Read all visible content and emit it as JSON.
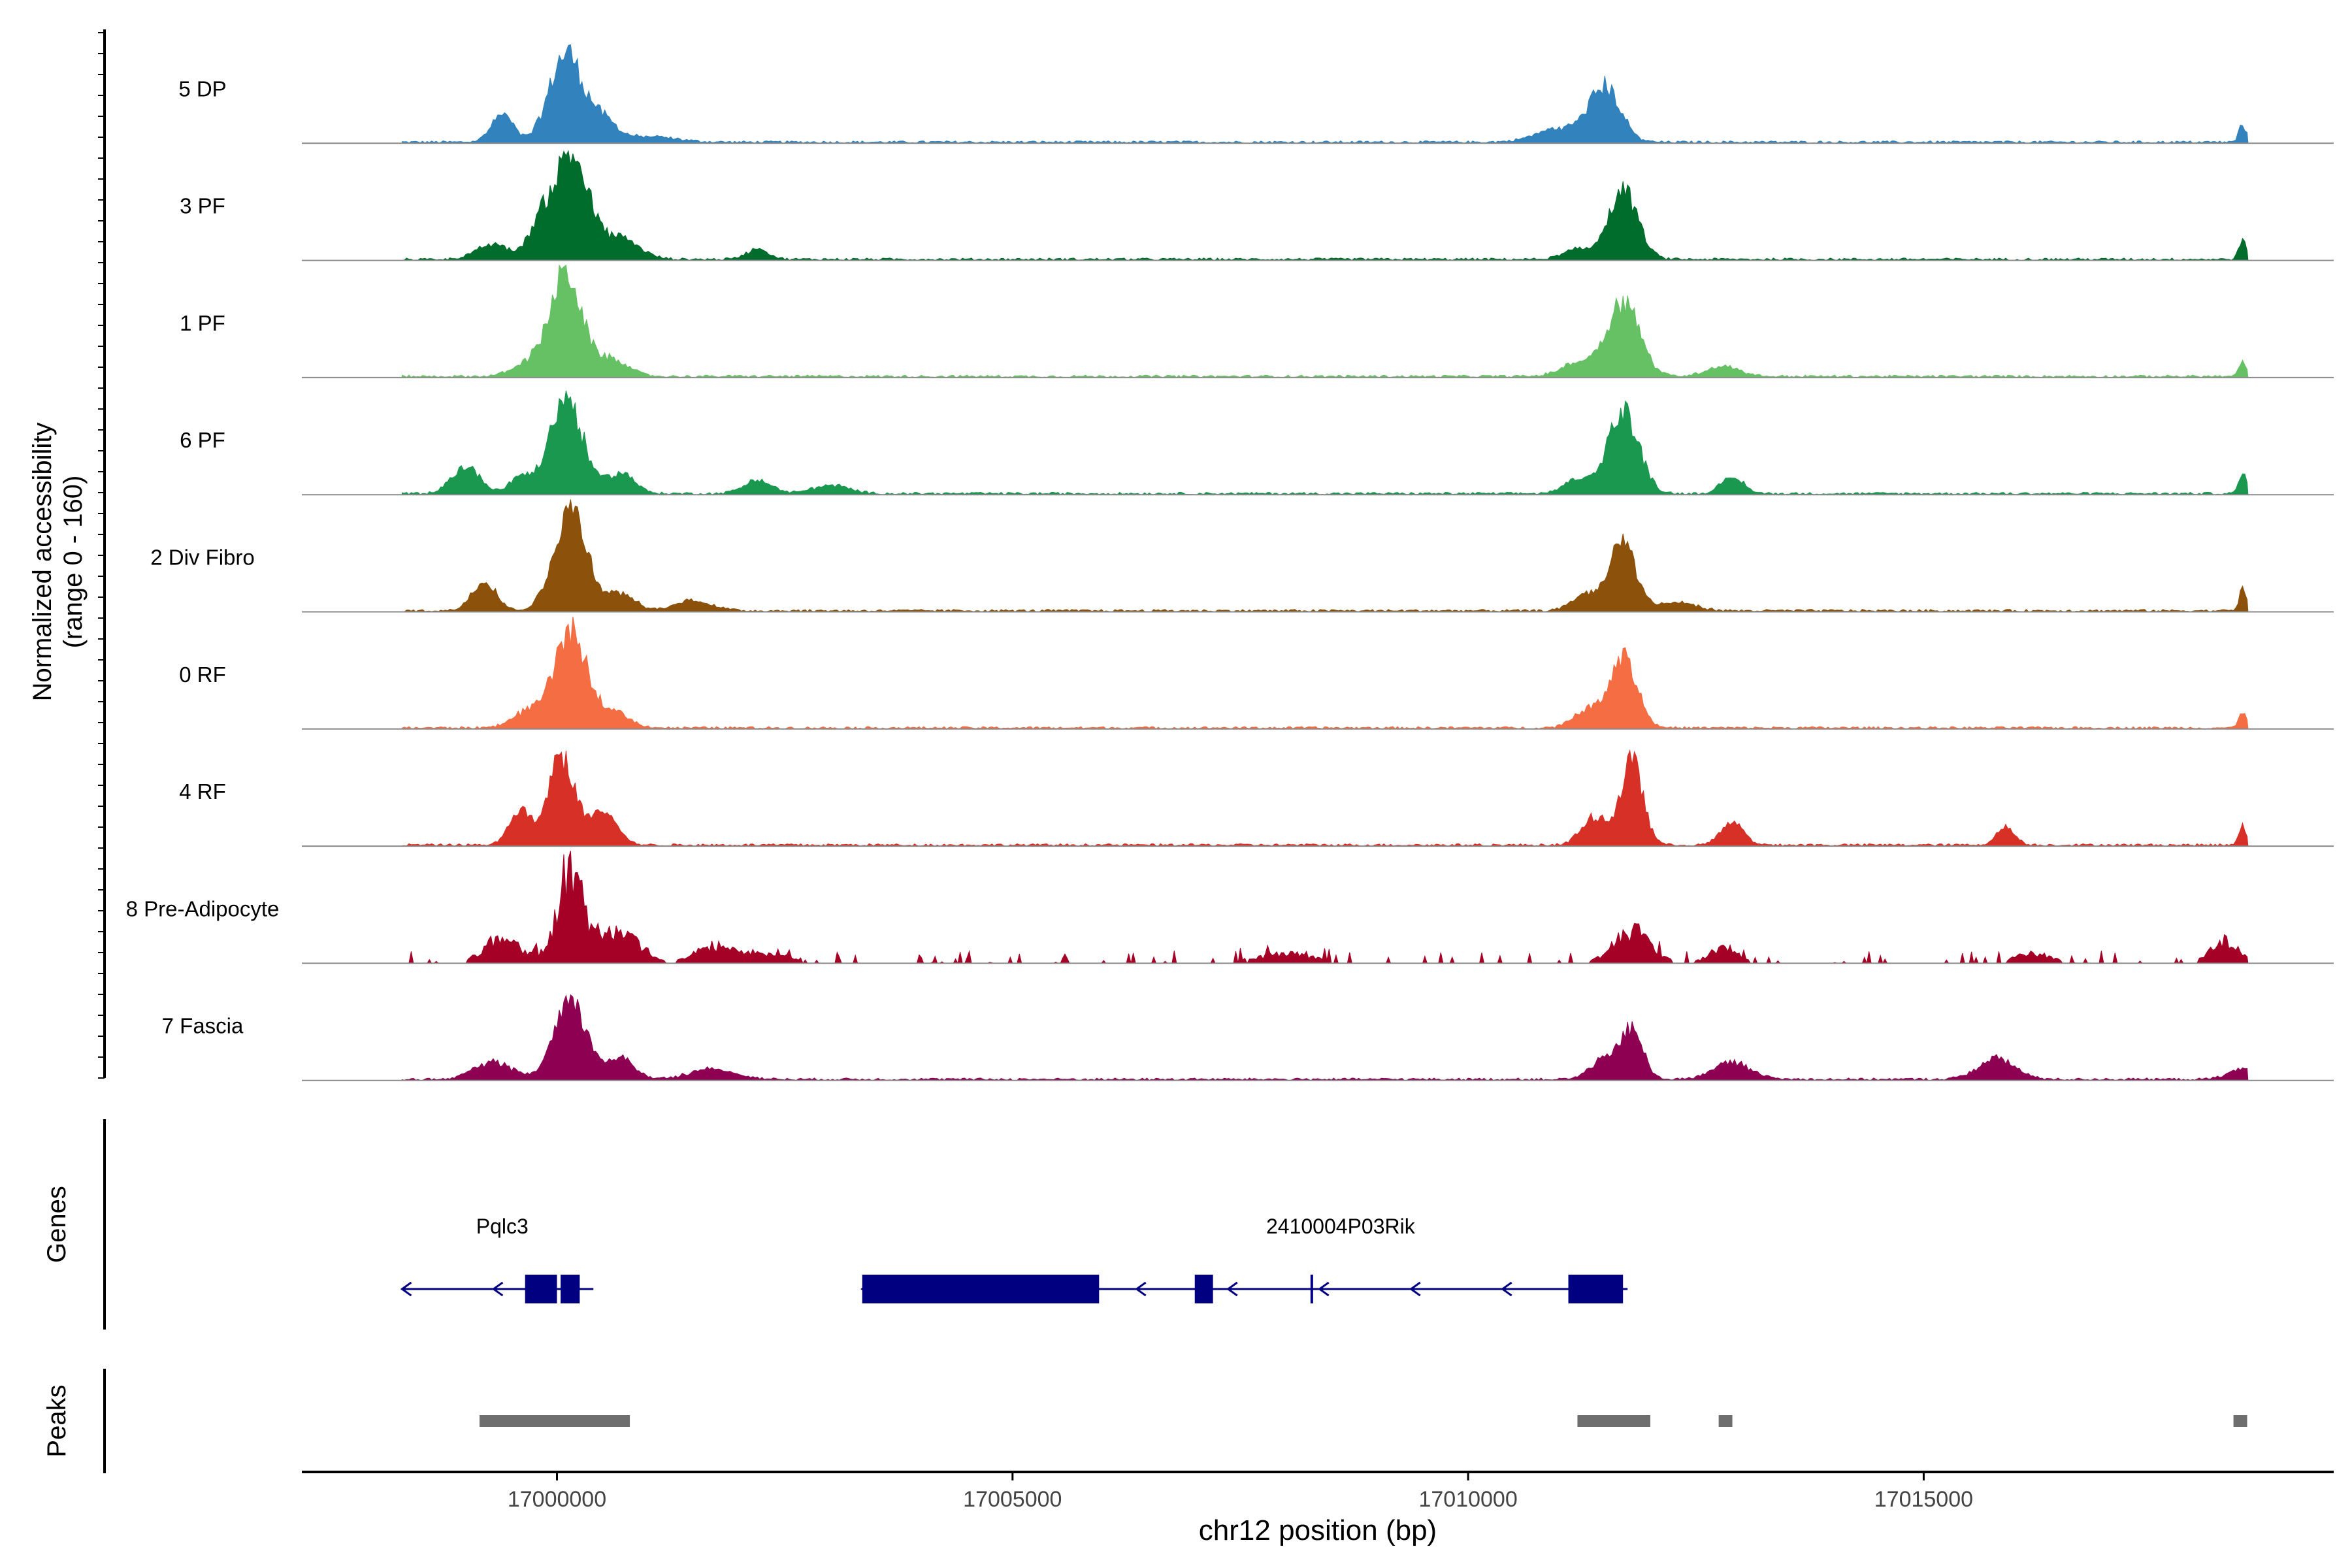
{
  "chart_data": {
    "type": "area",
    "title": "",
    "ylabel_line1": "Normalized accessibility",
    "ylabel_line2": "(range 0 - 160)",
    "ylim": [
      0,
      160
    ],
    "xlabel": "chr12 position (bp)",
    "xlim": [
      16997200,
      17019500
    ],
    "x_ticks": [
      17000000,
      17005000,
      17010000,
      17015000
    ],
    "x_tick_labels": [
      "17000000",
      "17005000",
      "17010000",
      "17015000"
    ],
    "series": [
      {
        "name": "5 DP",
        "color": "#3182bd",
        "peaks": [
          [
            16999400,
            40,
            120
          ],
          [
            17000100,
            130,
            180
          ],
          [
            17000500,
            30,
            150
          ],
          [
            17001000,
            8,
            300
          ],
          [
            17011500,
            80,
            170
          ],
          [
            17011000,
            20,
            250
          ],
          [
            17018500,
            25,
            40
          ]
        ]
      },
      {
        "name": "3 PF",
        "color": "#006d2c",
        "peaks": [
          [
            16999300,
            22,
            180
          ],
          [
            16999800,
            40,
            120
          ],
          [
            17000150,
            155,
            190
          ],
          [
            17000700,
            30,
            200
          ],
          [
            17002200,
            15,
            120
          ],
          [
            17011700,
            100,
            160
          ],
          [
            17011200,
            15,
            150
          ],
          [
            17018500,
            30,
            40
          ]
        ]
      },
      {
        "name": "1 PF",
        "color": "#66c164",
        "peaks": [
          [
            16999700,
            20,
            180
          ],
          [
            17000100,
            150,
            170
          ],
          [
            17000600,
            25,
            180
          ],
          [
            17011700,
            110,
            180
          ],
          [
            17011200,
            20,
            180
          ],
          [
            17012800,
            15,
            180
          ],
          [
            17018500,
            20,
            40
          ]
        ]
      },
      {
        "name": "6 PF",
        "color": "#1a9850",
        "peaks": [
          [
            16999000,
            40,
            150
          ],
          [
            16999600,
            25,
            120
          ],
          [
            17000100,
            140,
            180
          ],
          [
            17000700,
            30,
            150
          ],
          [
            17002200,
            20,
            150
          ],
          [
            17003000,
            12,
            200
          ],
          [
            17011700,
            120,
            170
          ],
          [
            17011200,
            20,
            150
          ],
          [
            17012900,
            25,
            120
          ],
          [
            17018500,
            30,
            40
          ]
        ]
      },
      {
        "name": "2 Div Fibro",
        "color": "#8c510a",
        "peaks": [
          [
            16999200,
            45,
            130
          ],
          [
            17000150,
            150,
            180
          ],
          [
            17000700,
            25,
            150
          ],
          [
            17001500,
            15,
            200
          ],
          [
            17011700,
            100,
            140
          ],
          [
            17011300,
            25,
            150
          ],
          [
            17012300,
            12,
            200
          ],
          [
            17018500,
            30,
            40
          ]
        ]
      },
      {
        "name": "0 RF",
        "color": "#f46d43",
        "peaks": [
          [
            16999700,
            25,
            180
          ],
          [
            17000150,
            140,
            170
          ],
          [
            17000600,
            25,
            180
          ],
          [
            17011700,
            105,
            150
          ],
          [
            17011300,
            25,
            150
          ],
          [
            17018500,
            25,
            40
          ]
        ]
      },
      {
        "name": "4 RF",
        "color": "#d73027",
        "peaks": [
          [
            16999600,
            50,
            120
          ],
          [
            17000050,
            130,
            140
          ],
          [
            17000500,
            50,
            150
          ],
          [
            17011400,
            40,
            150
          ],
          [
            17011800,
            120,
            120
          ],
          [
            17012900,
            35,
            120
          ],
          [
            17015900,
            25,
            100
          ],
          [
            17018500,
            30,
            40
          ]
        ]
      },
      {
        "name": "8 Pre-Adipocyte",
        "color": "#a50026",
        "peaks": [
          [
            16999400,
            40,
            200
          ],
          [
            17000150,
            140,
            150
          ],
          [
            17000700,
            50,
            200
          ],
          [
            17001700,
            25,
            200
          ],
          [
            17002300,
            15,
            300
          ],
          [
            17008000,
            15,
            300
          ],
          [
            17011800,
            50,
            200
          ],
          [
            17012800,
            25,
            150
          ],
          [
            17016200,
            15,
            200
          ],
          [
            17018300,
            35,
            150
          ]
        ]
      },
      {
        "name": "7 Fascia",
        "color": "#8e0152",
        "peaks": [
          [
            16999300,
            25,
            200
          ],
          [
            17000150,
            110,
            180
          ],
          [
            17000700,
            30,
            150
          ],
          [
            17001700,
            15,
            250
          ],
          [
            17011500,
            30,
            150
          ],
          [
            17011800,
            70,
            120
          ],
          [
            17012900,
            25,
            200
          ],
          [
            17015800,
            30,
            200
          ],
          [
            17018500,
            15,
            150
          ]
        ]
      }
    ],
    "genes_label": "Genes",
    "genes": [
      {
        "name": "Pqlc3",
        "strand": "-",
        "start": 16998300,
        "end": 17000400,
        "exons": [
          [
            16999650,
            17000000
          ],
          [
            17000040,
            17000250
          ]
        ]
      },
      {
        "name": "2410004P03Rik",
        "strand": "-",
        "start": 17003350,
        "end": 17011750,
        "exons": [
          [
            17003350,
            17005950
          ],
          [
            17007000,
            17007200
          ],
          [
            17008270,
            17008290
          ],
          [
            17011100,
            17011700
          ]
        ]
      }
    ],
    "peaks_label": "Peaks",
    "peak_regions": [
      [
        16999150,
        17000800
      ],
      [
        17011200,
        17012000
      ],
      [
        17012750,
        17012900
      ],
      [
        17018400,
        17018550
      ]
    ]
  }
}
